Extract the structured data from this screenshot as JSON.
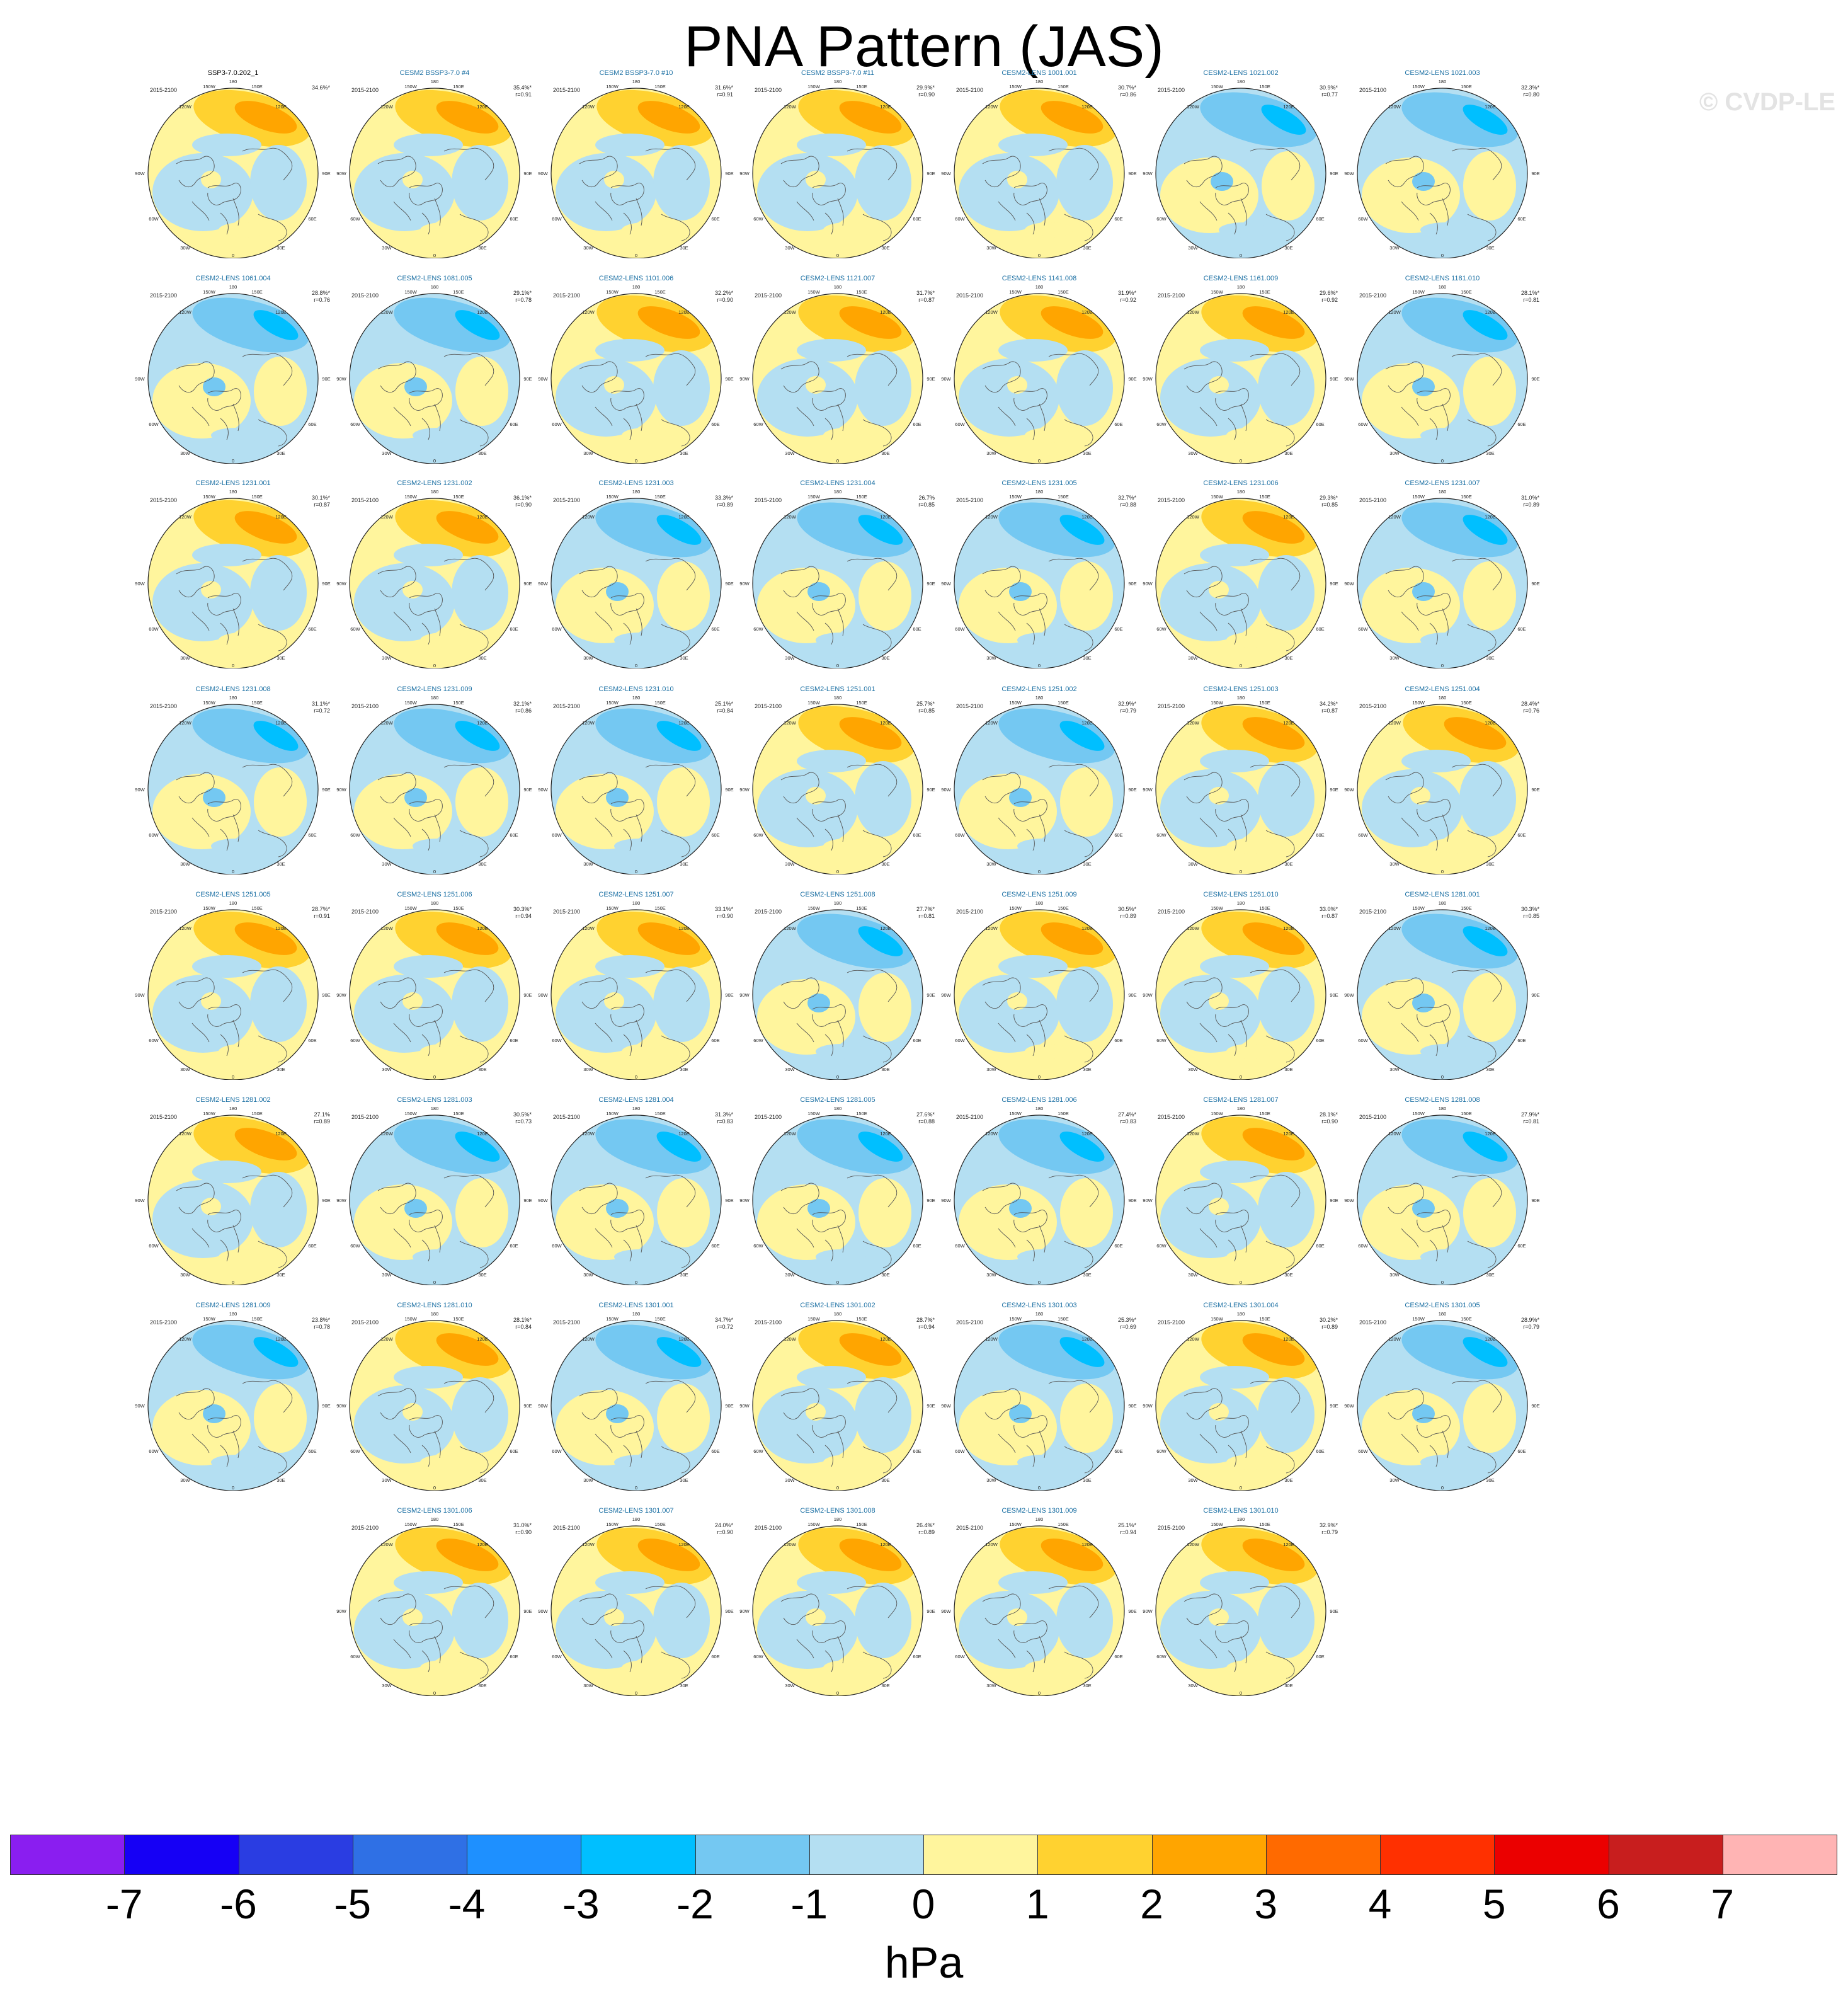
{
  "title": "PNA Pattern (JAS)",
  "watermark": "© CVDP-LE",
  "period": "2015-2100",
  "lon_labels": [
    "180",
    "150W",
    "150E",
    "120W",
    "120E",
    "90W",
    "90E",
    "60W",
    "60E",
    "30W",
    "30E",
    "0"
  ],
  "panels": [
    {
      "title": "SSP3-7.0.202_1",
      "pct": "34.6%*",
      "r": "",
      "pattern": "pos",
      "obs": true
    },
    {
      "title": "CESM2 BSSP3-7.0 #4",
      "pct": "35.4%*",
      "r": "r=0.91",
      "pattern": "pos"
    },
    {
      "title": "CESM2 BSSP3-7.0 #10",
      "pct": "31.6%*",
      "r": "r=0.91",
      "pattern": "pos"
    },
    {
      "title": "CESM2 BSSP3-7.0 #11",
      "pct": "29.9%*",
      "r": "r=0.90",
      "pattern": "pos"
    },
    {
      "title": "CESM2-LENS 1001.001",
      "pct": "30.7%*",
      "r": "r=0.86",
      "pattern": "pos"
    },
    {
      "title": "CESM2-LENS 1021.002",
      "pct": "30.9%*",
      "r": "r=0.77",
      "pattern": "neg"
    },
    {
      "title": "CESM2-LENS 1021.003",
      "pct": "32.3%*",
      "r": "r=0.80",
      "pattern": "neg"
    },
    {
      "title": "CESM2-LENS 1061.004",
      "pct": "28.8%*",
      "r": "r=0.76",
      "pattern": "neg"
    },
    {
      "title": "CESM2-LENS 1081.005",
      "pct": "29.1%*",
      "r": "r=0.78",
      "pattern": "neg"
    },
    {
      "title": "CESM2-LENS 1101.006",
      "pct": "32.2%*",
      "r": "r=0.90",
      "pattern": "pos"
    },
    {
      "title": "CESM2-LENS 1121.007",
      "pct": "31.7%*",
      "r": "r=0.87",
      "pattern": "pos"
    },
    {
      "title": "CESM2-LENS 1141.008",
      "pct": "31.9%*",
      "r": "r=0.92",
      "pattern": "pos"
    },
    {
      "title": "CESM2-LENS 1161.009",
      "pct": "29.6%*",
      "r": "r=0.92",
      "pattern": "pos"
    },
    {
      "title": "CESM2-LENS 1181.010",
      "pct": "28.1%*",
      "r": "r=0.81",
      "pattern": "neg"
    },
    {
      "title": "CESM2-LENS 1231.001",
      "pct": "30.1%*",
      "r": "r=0.87",
      "pattern": "pos"
    },
    {
      "title": "CESM2-LENS 1231.002",
      "pct": "36.1%*",
      "r": "r=0.90",
      "pattern": "pos"
    },
    {
      "title": "CESM2-LENS 1231.003",
      "pct": "33.3%*",
      "r": "r=0.89",
      "pattern": "neg"
    },
    {
      "title": "CESM2-LENS 1231.004",
      "pct": "26.7%",
      "r": "r=0.85",
      "pattern": "neg"
    },
    {
      "title": "CESM2-LENS 1231.005",
      "pct": "32.7%*",
      "r": "r=0.88",
      "pattern": "neg"
    },
    {
      "title": "CESM2-LENS 1231.006",
      "pct": "29.3%*",
      "r": "r=0.85",
      "pattern": "pos"
    },
    {
      "title": "CESM2-LENS 1231.007",
      "pct": "31.0%*",
      "r": "r=0.89",
      "pattern": "neg"
    },
    {
      "title": "CESM2-LENS 1231.008",
      "pct": "31.1%*",
      "r": "r=0.72",
      "pattern": "neg"
    },
    {
      "title": "CESM2-LENS 1231.009",
      "pct": "32.1%*",
      "r": "r=0.86",
      "pattern": "neg"
    },
    {
      "title": "CESM2-LENS 1231.010",
      "pct": "25.1%*",
      "r": "r=0.84",
      "pattern": "neg"
    },
    {
      "title": "CESM2-LENS 1251.001",
      "pct": "25.7%*",
      "r": "r=0.85",
      "pattern": "pos"
    },
    {
      "title": "CESM2-LENS 1251.002",
      "pct": "32.9%*",
      "r": "r=0.79",
      "pattern": "neg"
    },
    {
      "title": "CESM2-LENS 1251.003",
      "pct": "34.2%*",
      "r": "r=0.87",
      "pattern": "pos"
    },
    {
      "title": "CESM2-LENS 1251.004",
      "pct": "28.4%*",
      "r": "r=0.76",
      "pattern": "pos"
    },
    {
      "title": "CESM2-LENS 1251.005",
      "pct": "28.7%*",
      "r": "r=0.91",
      "pattern": "pos"
    },
    {
      "title": "CESM2-LENS 1251.006",
      "pct": "30.3%*",
      "r": "r=0.94",
      "pattern": "pos"
    },
    {
      "title": "CESM2-LENS 1251.007",
      "pct": "33.1%*",
      "r": "r=0.90",
      "pattern": "pos"
    },
    {
      "title": "CESM2-LENS 1251.008",
      "pct": "27.7%*",
      "r": "r=0.81",
      "pattern": "neg"
    },
    {
      "title": "CESM2-LENS 1251.009",
      "pct": "30.5%*",
      "r": "r=0.89",
      "pattern": "pos"
    },
    {
      "title": "CESM2-LENS 1251.010",
      "pct": "33.0%*",
      "r": "r=0.87",
      "pattern": "pos"
    },
    {
      "title": "CESM2-LENS 1281.001",
      "pct": "30.3%*",
      "r": "r=0.85",
      "pattern": "neg"
    },
    {
      "title": "CESM2-LENS 1281.002",
      "pct": "27.1%",
      "r": "r=0.89",
      "pattern": "pos"
    },
    {
      "title": "CESM2-LENS 1281.003",
      "pct": "30.5%*",
      "r": "r=0.73",
      "pattern": "neg"
    },
    {
      "title": "CESM2-LENS 1281.004",
      "pct": "31.3%*",
      "r": "r=0.83",
      "pattern": "neg"
    },
    {
      "title": "CESM2-LENS 1281.005",
      "pct": "27.6%*",
      "r": "r=0.88",
      "pattern": "neg"
    },
    {
      "title": "CESM2-LENS 1281.006",
      "pct": "27.4%*",
      "r": "r=0.83",
      "pattern": "neg"
    },
    {
      "title": "CESM2-LENS 1281.007",
      "pct": "28.1%*",
      "r": "r=0.90",
      "pattern": "pos"
    },
    {
      "title": "CESM2-LENS 1281.008",
      "pct": "27.9%*",
      "r": "r=0.81",
      "pattern": "neg"
    },
    {
      "title": "CESM2-LENS 1281.009",
      "pct": "23.8%*",
      "r": "r=0.78",
      "pattern": "neg"
    },
    {
      "title": "CESM2-LENS 1281.010",
      "pct": "28.1%*",
      "r": "r=0.84",
      "pattern": "pos"
    },
    {
      "title": "CESM2-LENS 1301.001",
      "pct": "34.7%*",
      "r": "r=0.72",
      "pattern": "neg"
    },
    {
      "title": "CESM2-LENS 1301.002",
      "pct": "28.7%*",
      "r": "r=0.94",
      "pattern": "pos"
    },
    {
      "title": "CESM2-LENS 1301.003",
      "pct": "25.3%*",
      "r": "r=0.69",
      "pattern": "neg"
    },
    {
      "title": "CESM2-LENS 1301.004",
      "pct": "30.2%*",
      "r": "r=0.89",
      "pattern": "pos"
    },
    {
      "title": "CESM2-LENS 1301.005",
      "pct": "28.9%*",
      "r": "r=0.79",
      "pattern": "neg"
    },
    {
      "title": "CESM2-LENS 1301.006",
      "pct": "31.0%*",
      "r": "r=0.90",
      "pattern": "pos"
    },
    {
      "title": "CESM2-LENS 1301.007",
      "pct": "24.0%*",
      "r": "r=0.90",
      "pattern": "pos"
    },
    {
      "title": "CESM2-LENS 1301.008",
      "pct": "26.4%*",
      "r": "r=0.89",
      "pattern": "pos"
    },
    {
      "title": "CESM2-LENS 1301.009",
      "pct": "25.1%*",
      "r": "r=0.94",
      "pattern": "pos"
    },
    {
      "title": "CESM2-LENS 1301.010",
      "pct": "32.9%*",
      "r": "r=0.79",
      "pattern": "pos"
    }
  ],
  "colorbar": {
    "colors": [
      "#8a1ef0",
      "#1600f5",
      "#2a3de2",
      "#2f70e5",
      "#1e90ff",
      "#00bfff",
      "#74c8f2",
      "#b4dff2",
      "#fff59d",
      "#ffd230",
      "#ffa500",
      "#ff6a00",
      "#ff3000",
      "#eb0000",
      "#c81e1e",
      "#ffb4b4"
    ],
    "ticks": [
      "-7",
      "-6",
      "-5",
      "-4",
      "-3",
      "-2",
      "-1",
      "0",
      "1",
      "2",
      "3",
      "4",
      "5",
      "6",
      "7"
    ],
    "unit": "hPa"
  }
}
